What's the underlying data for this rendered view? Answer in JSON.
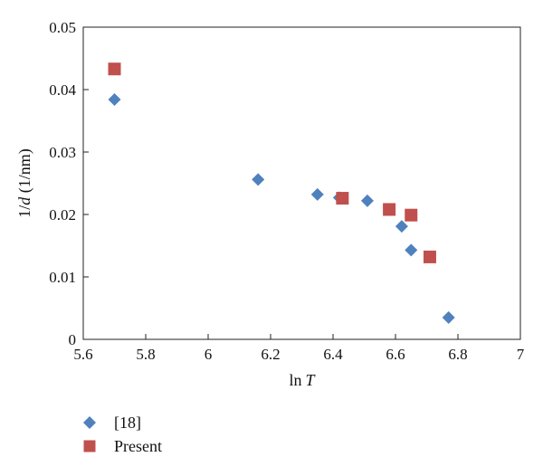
{
  "chart_data": {
    "type": "scatter",
    "title": "",
    "xlabel_prefix": "ln",
    "xlabel_var": "T",
    "ylabel_prefix": "1/",
    "ylabel_var": "d",
    "ylabel_suffix": " (1/nm)",
    "xlim": [
      5.6,
      7.0
    ],
    "ylim": [
      0,
      0.05
    ],
    "xticks": [
      5.6,
      5.8,
      6.0,
      6.2,
      6.4,
      6.6,
      6.8,
      7.0
    ],
    "xtick_labels": [
      "5.6",
      "5.8",
      "6",
      "6.2",
      "6.4",
      "6.6",
      "6.8",
      "7"
    ],
    "yticks": [
      0,
      0.01,
      0.02,
      0.03,
      0.04,
      0.05
    ],
    "ytick_labels": [
      "0",
      "0.01",
      "0.02",
      "0.03",
      "0.04",
      "0.05"
    ],
    "grid": false,
    "legend_position": "bottom-left",
    "series": [
      {
        "name": "[18]",
        "marker": "diamond",
        "color": "#4F81BD",
        "points": [
          [
            5.7,
            0.0384
          ],
          [
            6.16,
            0.0256
          ],
          [
            6.35,
            0.0232
          ],
          [
            6.42,
            0.0227
          ],
          [
            6.51,
            0.0222
          ],
          [
            6.62,
            0.0181
          ],
          [
            6.65,
            0.0143
          ],
          [
            6.77,
            0.0035
          ]
        ]
      },
      {
        "name": "Present",
        "marker": "square",
        "color": "#C0504D",
        "points": [
          [
            5.7,
            0.0433
          ],
          [
            6.43,
            0.0226
          ],
          [
            6.58,
            0.0208
          ],
          [
            6.65,
            0.0199
          ],
          [
            6.71,
            0.0132
          ]
        ]
      }
    ]
  }
}
